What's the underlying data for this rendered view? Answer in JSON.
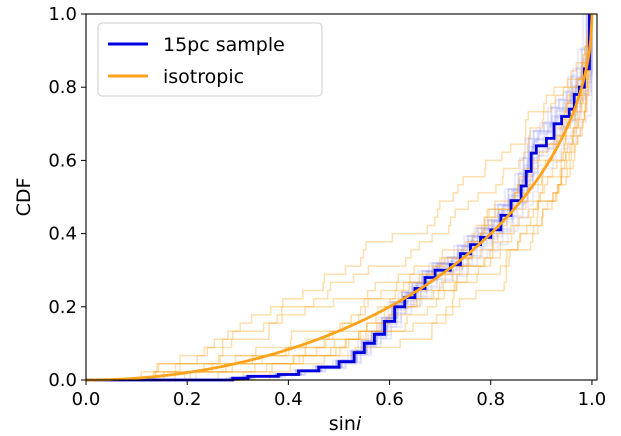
{
  "chart_data": {
    "type": "line",
    "title": "",
    "xlabel": "sin",
    "xlabel_italic": "i",
    "ylabel": "CDF",
    "xlim": [
      0.0,
      1.01
    ],
    "ylim": [
      0.0,
      1.0
    ],
    "x_ticks": [
      "0.0",
      "0.2",
      "0.4",
      "0.6",
      "0.8",
      "1.0"
    ],
    "y_ticks": [
      "0.0",
      "0.2",
      "0.4",
      "0.6",
      "0.8",
      "1.0"
    ],
    "grid": false,
    "legend_position": "top-left",
    "series": [
      {
        "name": "15pc sample",
        "color": "#0000dd",
        "style": "step",
        "points": [
          [
            0.0,
            0.0
          ],
          [
            0.29,
            0.0
          ],
          [
            0.29,
            0.005
          ],
          [
            0.32,
            0.005
          ],
          [
            0.32,
            0.01
          ],
          [
            0.38,
            0.01
          ],
          [
            0.38,
            0.015
          ],
          [
            0.42,
            0.015
          ],
          [
            0.42,
            0.025
          ],
          [
            0.46,
            0.025
          ],
          [
            0.46,
            0.035
          ],
          [
            0.5,
            0.035
          ],
          [
            0.5,
            0.05
          ],
          [
            0.53,
            0.05
          ],
          [
            0.53,
            0.075
          ],
          [
            0.55,
            0.075
          ],
          [
            0.55,
            0.1
          ],
          [
            0.57,
            0.1
          ],
          [
            0.57,
            0.125
          ],
          [
            0.59,
            0.125
          ],
          [
            0.59,
            0.16
          ],
          [
            0.61,
            0.16
          ],
          [
            0.61,
            0.2
          ],
          [
            0.63,
            0.2
          ],
          [
            0.63,
            0.225
          ],
          [
            0.65,
            0.225
          ],
          [
            0.65,
            0.25
          ],
          [
            0.67,
            0.25
          ],
          [
            0.67,
            0.28
          ],
          [
            0.69,
            0.28
          ],
          [
            0.69,
            0.3
          ],
          [
            0.72,
            0.3
          ],
          [
            0.72,
            0.315
          ],
          [
            0.74,
            0.315
          ],
          [
            0.74,
            0.345
          ],
          [
            0.76,
            0.345
          ],
          [
            0.76,
            0.37
          ],
          [
            0.78,
            0.37
          ],
          [
            0.78,
            0.39
          ],
          [
            0.8,
            0.39
          ],
          [
            0.8,
            0.41
          ],
          [
            0.82,
            0.41
          ],
          [
            0.82,
            0.45
          ],
          [
            0.84,
            0.45
          ],
          [
            0.84,
            0.49
          ],
          [
            0.86,
            0.49
          ],
          [
            0.86,
            0.53
          ],
          [
            0.87,
            0.53
          ],
          [
            0.87,
            0.57
          ],
          [
            0.88,
            0.57
          ],
          [
            0.88,
            0.62
          ],
          [
            0.89,
            0.62
          ],
          [
            0.89,
            0.64
          ],
          [
            0.91,
            0.64
          ],
          [
            0.91,
            0.66
          ],
          [
            0.925,
            0.66
          ],
          [
            0.925,
            0.7
          ],
          [
            0.94,
            0.7
          ],
          [
            0.94,
            0.72
          ],
          [
            0.955,
            0.72
          ],
          [
            0.955,
            0.74
          ],
          [
            0.965,
            0.74
          ],
          [
            0.965,
            0.78
          ],
          [
            0.975,
            0.78
          ],
          [
            0.975,
            0.8
          ],
          [
            0.985,
            0.8
          ],
          [
            0.985,
            0.85
          ],
          [
            0.995,
            0.85
          ],
          [
            0.995,
            1.0
          ]
        ]
      },
      {
        "name": "isotropic",
        "color": "#ffa31a",
        "style": "line",
        "function": "1 - sqrt(1 - x^2)"
      }
    ]
  }
}
